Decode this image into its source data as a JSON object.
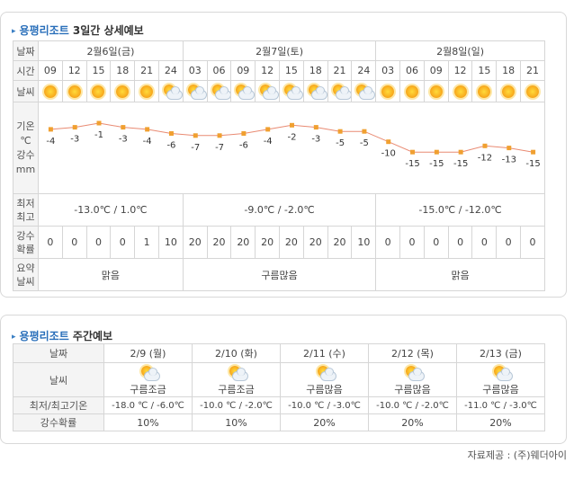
{
  "three_day": {
    "title_prefix": "용평리조트",
    "title_suffix": "3일간 상세예보",
    "row_labels": {
      "date": "날짜",
      "time": "시간",
      "weather": "날씨",
      "temp": [
        "기온",
        "℃"
      ],
      "rain": [
        "강수",
        "mm"
      ],
      "minmax": [
        "최저",
        "최고"
      ],
      "pop": [
        "강수",
        "확률"
      ],
      "summary": [
        "요약",
        "날씨"
      ]
    },
    "days": [
      {
        "date": "2월6일(금)",
        "minmax": "-13.0℃ / 1.0℃",
        "summary": "맑음"
      },
      {
        "date": "2월7일(토)",
        "minmax": "-9.0℃ / -2.0℃",
        "summary": "구름많음"
      },
      {
        "date": "2월8일(일)",
        "minmax": "-15.0℃ / -12.0℃",
        "summary": "맑음"
      }
    ],
    "times": [
      "09",
      "12",
      "15",
      "18",
      "21",
      "24",
      "03",
      "06",
      "09",
      "12",
      "15",
      "18",
      "21",
      "24",
      "03",
      "06",
      "09",
      "12",
      "15",
      "18",
      "21"
    ],
    "icons": [
      "sun-icon",
      "sun-icon",
      "sun-icon",
      "sun-icon",
      "sun-icon",
      "partly-cloudy-icon",
      "partly-cloudy-icon",
      "partly-cloudy-icon",
      "partly-cloudy-icon",
      "partly-cloudy-icon",
      "partly-cloudy-icon",
      "partly-cloudy-icon",
      "partly-cloudy-icon",
      "partly-cloudy-icon",
      "sun-icon",
      "sun-icon",
      "sun-icon",
      "sun-icon",
      "sun-icon",
      "sun-icon",
      "sun-icon"
    ],
    "temps": [
      -4,
      -3,
      -1,
      -3,
      -4,
      -6,
      -7,
      -7,
      -6,
      -4,
      -2,
      -3,
      -5,
      -5,
      -10,
      -15,
      -15,
      -15,
      -12,
      -13,
      -15
    ],
    "pops": [
      "0",
      "0",
      "0",
      "0",
      "1",
      "10",
      "20",
      "20",
      "20",
      "20",
      "20",
      "20",
      "20",
      "10",
      "0",
      "0",
      "0",
      "0",
      "0",
      "0",
      "0"
    ]
  },
  "weekly": {
    "title_prefix": "용평리조트",
    "title_suffix": "주간예보",
    "row_labels": {
      "date": "날짜",
      "weather": "날씨",
      "minmax": "최저/최고기온",
      "pop": "강수확률"
    },
    "days": [
      {
        "date": "2/9 (월)",
        "weather": "구름조금",
        "minmax": "-18.0 ℃ / -6.0℃",
        "pop": "10%"
      },
      {
        "date": "2/10 (화)",
        "weather": "구름조금",
        "minmax": "-10.0 ℃ / -2.0℃",
        "pop": "10%"
      },
      {
        "date": "2/11 (수)",
        "weather": "구름많음",
        "minmax": "-10.0 ℃ / -3.0℃",
        "pop": "20%"
      },
      {
        "date": "2/12 (목)",
        "weather": "구름많음",
        "minmax": "-10.0 ℃ / -2.0℃",
        "pop": "20%"
      },
      {
        "date": "2/13 (금)",
        "weather": "구름많음",
        "minmax": "-11.0 ℃ / -3.0℃",
        "pop": "20%"
      }
    ]
  },
  "credit": "자료제공 : (주)웨더아이",
  "chart_data": {
    "type": "line",
    "x": [
      "09",
      "12",
      "15",
      "18",
      "21",
      "24",
      "03",
      "06",
      "09",
      "12",
      "15",
      "18",
      "21",
      "24",
      "03",
      "06",
      "09",
      "12",
      "15",
      "18",
      "21"
    ],
    "series": [
      {
        "values": [
          -4,
          -3,
          -1,
          -3,
          -4,
          -6,
          -7,
          -7,
          -6,
          -4,
          -2,
          -3,
          -5,
          -5,
          -10,
          -15,
          -15,
          -15,
          -12,
          -13,
          -15
        ]
      }
    ],
    "line_color": "#e98a72",
    "marker_color": "#f0a030"
  }
}
